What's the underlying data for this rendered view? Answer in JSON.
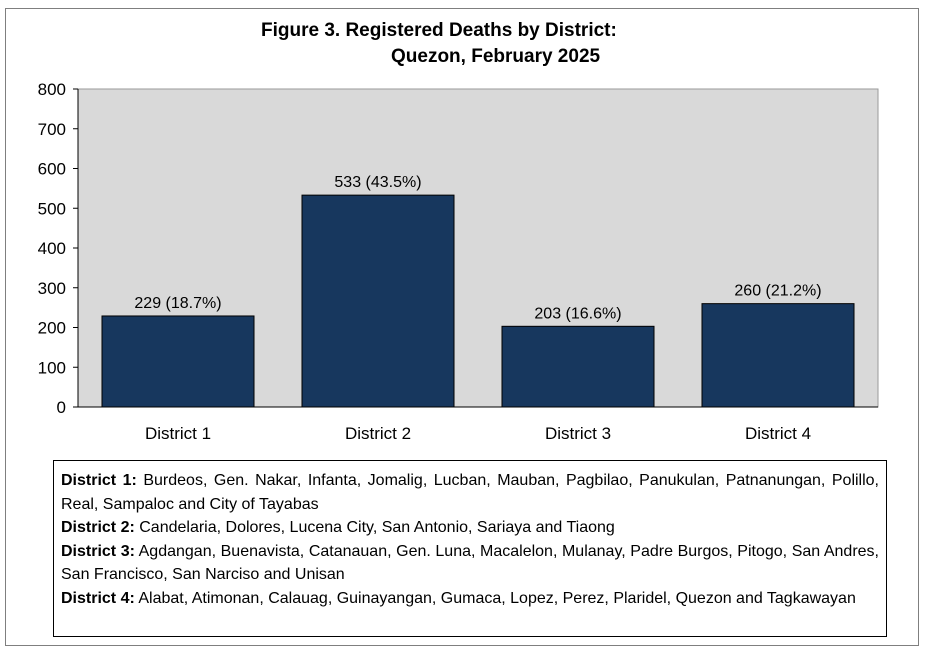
{
  "title_line1": "Figure 3. Registered Deaths by District:",
  "title_line2": "Quezon, February 2025",
  "chart_data": {
    "type": "bar",
    "title": "Figure 3. Registered Deaths by District: Quezon, February 2025",
    "categories": [
      "District 1",
      "District 2",
      "District 3",
      "District 4"
    ],
    "values": [
      229,
      533,
      203,
      260
    ],
    "data_labels": [
      "229 (18.7%)",
      "533 (43.5%)",
      "203 (16.6%)",
      "260 (21.2%)"
    ],
    "ylim": [
      0,
      800
    ],
    "yticks": [
      0,
      100,
      200,
      300,
      400,
      500,
      600,
      700,
      800
    ],
    "grid": false,
    "bar_color": "#17375e",
    "plot_background": "#d9d9d9",
    "xlabel": "",
    "ylabel": ""
  },
  "legend": [
    {
      "label": "District 1:",
      "text": " Burdeos, Gen. Nakar, Infanta, Jomalig, Lucban, Mauban, Pagbilao,   Panukulan, Patnanungan, Polillo, Real, Sampaloc and City of Tayabas"
    },
    {
      "label": "District 2:",
      "text": " Candelaria, Dolores, Lucena City, San Antonio, Sariaya and Tiaong"
    },
    {
      "label": "District 3:",
      "text": " Agdangan, Buenavista, Catanauan, Gen. Luna, Macalelon, Mulanay, Padre Burgos, Pitogo, San Andres, San Francisco, San Narciso and Unisan"
    },
    {
      "label": "District 4:",
      "text": " Alabat, Atimonan, Calauag, Guinayangan, Gumaca, Lopez, Perez, Plaridel, Quezon and Tagkawayan"
    }
  ]
}
